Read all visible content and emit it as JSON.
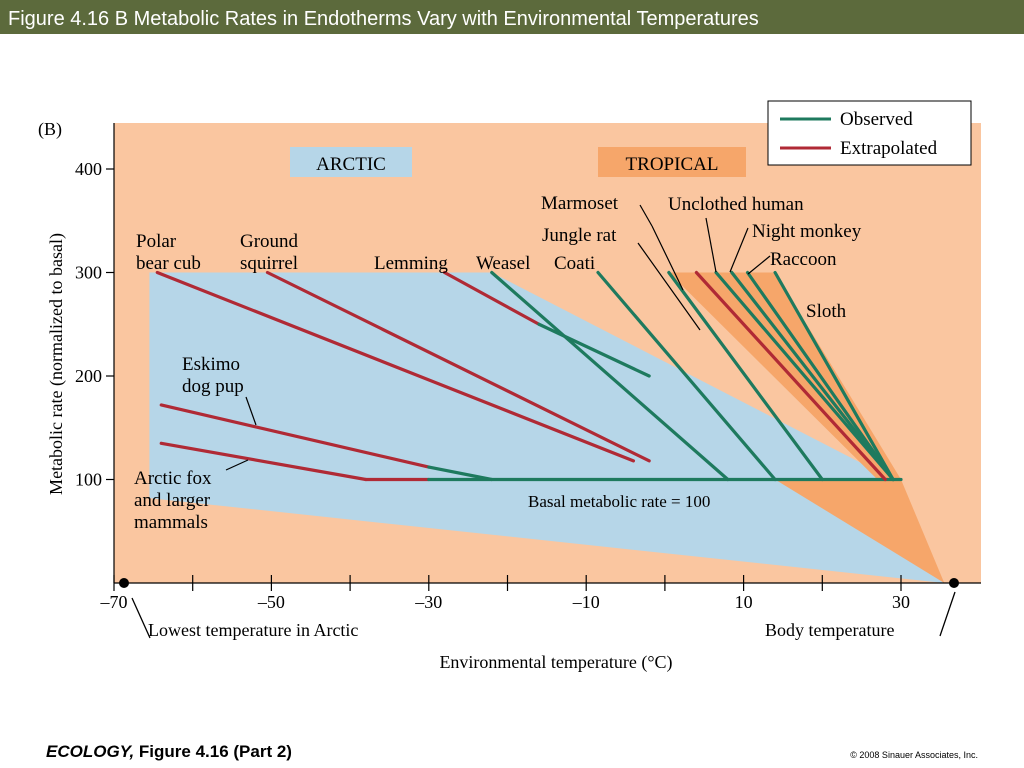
{
  "slide": {
    "title": "Figure 4.16 B  Metabolic Rates in Endotherms Vary with Environmental Temperatures",
    "footer_book": "ECOLOGY,",
    "footer_figure": "Figure 4.16 (Part 2)",
    "copyright": "© 2008 Sinauer Associates, Inc."
  },
  "colors": {
    "background_zone": "#fac6a0",
    "arctic_zone": "#b6d6e8",
    "tropical_zone": "#f6a66a",
    "observed": "#1e7a5e",
    "extrapolated": "#b02a35",
    "title_bar": "#5c6a3c"
  },
  "chart_data": {
    "type": "line",
    "panel_label": "(B)",
    "xlabel": "Environmental temperature (°C)",
    "ylabel": "Metabolic rate (normalized to basal)",
    "xlim": [
      -70,
      37
    ],
    "ylim": [
      0,
      450
    ],
    "x_ticks": [
      -70,
      -50,
      -30,
      -10,
      10,
      30
    ],
    "y_ticks": [
      100,
      200,
      300,
      400
    ],
    "zone_labels": {
      "arctic": "ARCTIC",
      "tropical": "TROPICAL"
    },
    "legend": {
      "observed": "Observed",
      "extrapolated": "Extrapolated"
    },
    "basal_label": "Basal metabolic rate = 100",
    "lowest_temp_label": "Lowest temperature in Arctic",
    "body_temp_label": "Body temperature",
    "species": [
      {
        "name": "Polar bear cub",
        "segments": [
          {
            "kind": "extrapolated",
            "points": [
              [
                -64.5,
                300
              ],
              [
                -4,
                118
              ]
            ]
          }
        ]
      },
      {
        "name": "Ground squirrel",
        "segments": [
          {
            "kind": "extrapolated",
            "points": [
              [
                -50.5,
                300
              ],
              [
                -2,
                118
              ]
            ]
          }
        ]
      },
      {
        "name": "Lemming",
        "segments": [
          {
            "kind": "extrapolated",
            "points": [
              [
                -28,
                300
              ],
              [
                -16,
                250
              ]
            ]
          },
          {
            "kind": "observed",
            "points": [
              [
                -16,
                250
              ],
              [
                -2,
                200
              ]
            ]
          }
        ]
      },
      {
        "name": "Weasel",
        "segments": [
          {
            "kind": "observed",
            "points": [
              [
                -22,
                300
              ],
              [
                8,
                100
              ]
            ]
          }
        ]
      },
      {
        "name": "Coati",
        "segments": [
          {
            "kind": "observed",
            "points": [
              [
                -8.5,
                300
              ],
              [
                14,
                100
              ]
            ]
          }
        ]
      },
      {
        "name": "Jungle rat",
        "segments": [
          {
            "kind": "observed",
            "points": [
              [
                0.5,
                300
              ],
              [
                20,
                100
              ]
            ]
          }
        ]
      },
      {
        "name": "Marmoset",
        "segments": [
          {
            "kind": "extrapolated",
            "points": [
              [
                4,
                300
              ],
              [
                28,
                100
              ]
            ]
          }
        ]
      },
      {
        "name": "Unclothed human",
        "segments": [
          {
            "kind": "observed",
            "points": [
              [
                6.5,
                300
              ],
              [
                29,
                100
              ]
            ]
          }
        ]
      },
      {
        "name": "Night monkey",
        "segments": [
          {
            "kind": "observed",
            "points": [
              [
                8.5,
                300
              ],
              [
                29,
                100
              ]
            ]
          }
        ]
      },
      {
        "name": "Raccoon",
        "segments": [
          {
            "kind": "observed",
            "points": [
              [
                10.5,
                300
              ],
              [
                29,
                100
              ]
            ]
          }
        ]
      },
      {
        "name": "Sloth",
        "segments": [
          {
            "kind": "observed",
            "points": [
              [
                14,
                300
              ],
              [
                29,
                100
              ]
            ]
          }
        ]
      },
      {
        "name": "Eskimo dog pup",
        "segments": [
          {
            "kind": "extrapolated",
            "points": [
              [
                -64,
                172
              ],
              [
                -30,
                112
              ]
            ]
          },
          {
            "kind": "observed",
            "points": [
              [
                -30,
                112
              ],
              [
                -22,
                100
              ]
            ]
          }
        ]
      },
      {
        "name": "Arctic fox and larger mammals",
        "segments": [
          {
            "kind": "extrapolated",
            "points": [
              [
                -64,
                135
              ],
              [
                -38,
                100
              ]
            ]
          }
        ]
      }
    ],
    "basal_line": [
      {
        "kind": "extrapolated",
        "points": [
          [
            -38,
            100
          ],
          [
            -30,
            100
          ]
        ]
      },
      {
        "kind": "observed",
        "points": [
          [
            -30,
            100
          ],
          [
            30,
            100
          ]
        ]
      }
    ],
    "species_labels": {
      "polar": [
        "Polar",
        "bear cub"
      ],
      "ground": [
        "Ground",
        "squirrel"
      ],
      "lemming": "Lemming",
      "weasel": "Weasel",
      "coati": "Coati",
      "marmoset": "Marmoset",
      "jungle": "Jungle rat",
      "human": "Unclothed human",
      "night": "Night monkey",
      "raccoon": "Raccoon",
      "sloth": "Sloth",
      "eskimo": [
        "Eskimo",
        "dog pup"
      ],
      "fox": [
        "Arctic fox",
        "and larger",
        "mammals"
      ]
    }
  }
}
